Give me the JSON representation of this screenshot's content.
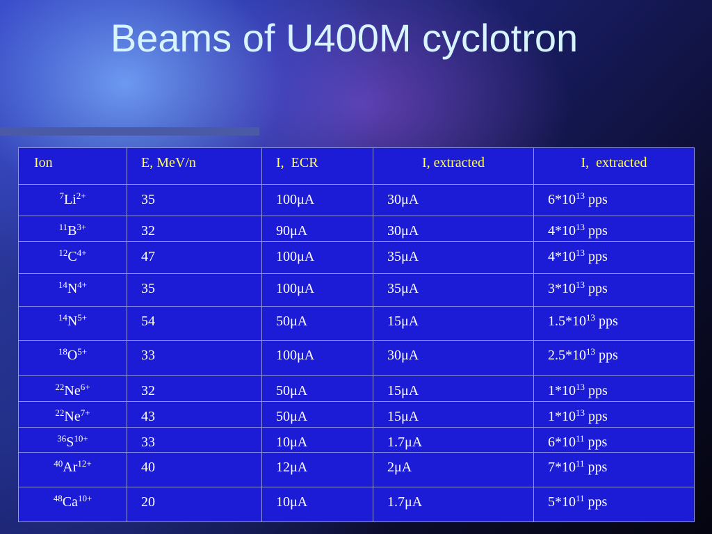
{
  "title": "Beams of U400M cyclotron",
  "table": {
    "header": [
      "Ion",
      "E, MeV/n",
      "I,  ECR",
      "I, extracted",
      "I,  extracted"
    ],
    "rows": [
      {
        "ion": {
          "mass": "7",
          "symbol": "Li",
          "charge": "2+"
        },
        "energy": "35",
        "ecr": "100μA",
        "extracted": "30μA",
        "intensity": {
          "base": "6*10",
          "exp": "13",
          "unit": "pps"
        }
      },
      {
        "ion": {
          "mass": "11",
          "symbol": "B",
          "charge": "3+"
        },
        "energy": "32",
        "ecr": "90μA",
        "extracted": "30μA",
        "intensity": {
          "base": "4*10",
          "exp": "13",
          "unit": "pps"
        }
      },
      {
        "ion": {
          "mass": "12",
          "symbol": "C",
          "charge": "4+"
        },
        "energy": "47",
        "ecr": "100μA",
        "extracted": "35μA",
        "intensity": {
          "base": "4*10",
          "exp": "13",
          "unit": "pps"
        }
      },
      {
        "ion": {
          "mass": "14",
          "symbol": "N",
          "charge": "4+"
        },
        "energy": "35",
        "ecr": "100μA",
        "extracted": "35μA",
        "intensity": {
          "base": "3*10",
          "exp": "13",
          "unit": "pps"
        }
      },
      {
        "ion": {
          "mass": "14",
          "symbol": "N",
          "charge": "5+"
        },
        "energy": "54",
        "ecr": "50μA",
        "extracted": "15μA",
        "intensity": {
          "base": "1.5*10",
          "exp": "13",
          "unit": "pps"
        }
      },
      {
        "ion": {
          "mass": "18",
          "symbol": "O",
          "charge": "5+"
        },
        "energy": "33",
        "ecr": "100μA",
        "extracted": "30μA",
        "intensity": {
          "base": "2.5*10",
          "exp": "13",
          "unit": "pps"
        }
      },
      {
        "ion": {
          "mass": "22",
          "symbol": "Ne",
          "charge": "6+"
        },
        "energy": "32",
        "ecr": "50μA",
        "extracted": "15μA",
        "intensity": {
          "base": "1*10",
          "exp": "13",
          "unit": "pps"
        }
      },
      {
        "ion": {
          "mass": "22",
          "symbol": "Ne",
          "charge": "7+"
        },
        "energy": "43",
        "ecr": "50μA",
        "extracted": "15μA",
        "intensity": {
          "base": "1*10",
          "exp": "13",
          "unit": "pps"
        }
      },
      {
        "ion": {
          "mass": "36",
          "symbol": "S",
          "charge": "10+"
        },
        "energy": "33",
        "ecr": "10μA",
        "extracted": "1.7μA",
        "intensity": {
          "base": "6*10",
          "exp": "11",
          "unit": "pps"
        }
      },
      {
        "ion": {
          "mass": "40",
          "symbol": "Ar",
          "charge": "12+"
        },
        "energy": "40",
        "ecr": "12μA",
        "extracted": "2μA",
        "intensity": {
          "base": "7*10",
          "exp": "11",
          "unit": "pps"
        }
      },
      {
        "ion": {
          "mass": "48",
          "symbol": "Ca",
          "charge": "10+"
        },
        "energy": "20",
        "ecr": "10μA",
        "extracted": "1.7μA",
        "intensity": {
          "base": "5*10",
          "exp": "11",
          "unit": "pps"
        }
      }
    ]
  }
}
